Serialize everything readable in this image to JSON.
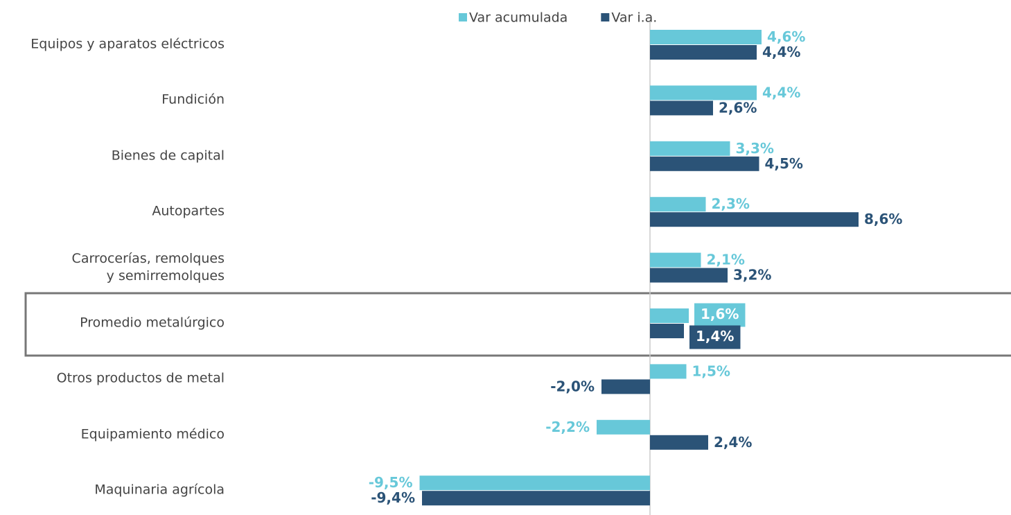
{
  "chart_data": {
    "type": "bar",
    "orientation": "horizontal",
    "categories": [
      "Equipos y aparatos eléctricos",
      "Fundición",
      "Bienes de capital",
      "Autopartes",
      "Carrocerías, remolques\ny semirremolques",
      "Promedio metalúrgico",
      "Otros productos de metal",
      "Equipamiento médico",
      "Maquinaria agrícola"
    ],
    "series": [
      {
        "name": "Var acumulada",
        "color": "#67c8d9",
        "values": [
          4.6,
          4.4,
          3.3,
          2.3,
          2.1,
          1.6,
          1.5,
          -2.2,
          -9.5
        ],
        "value_labels": [
          "4,6%",
          "4,4%",
          "3,3%",
          "2,3%",
          "2,1%",
          "1,6%",
          "1,5%",
          "-2,2%",
          "-9,5%"
        ]
      },
      {
        "name": "Var i.a.",
        "color": "#2b5377",
        "values": [
          4.4,
          2.6,
          4.5,
          8.6,
          3.2,
          1.4,
          -2.0,
          2.4,
          -9.4
        ],
        "value_labels": [
          "4,4%",
          "2,6%",
          "4,5%",
          "8,6%",
          "3,2%",
          "1,4%",
          "-2,0%",
          "2,4%",
          "-9,4%"
        ]
      }
    ],
    "xlim": [
      -10,
      14.5
    ],
    "legend": "top",
    "highlight_index": 5
  }
}
